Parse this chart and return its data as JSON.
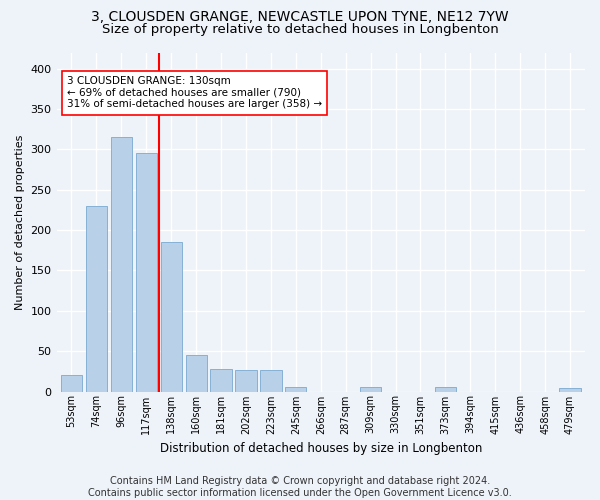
{
  "title_line1": "3, CLOUSDEN GRANGE, NEWCASTLE UPON TYNE, NE12 7YW",
  "title_line2": "Size of property relative to detached houses in Longbenton",
  "xlabel": "Distribution of detached houses by size in Longbenton",
  "ylabel": "Number of detached properties",
  "bar_color": "#b8d0e8",
  "bar_edge_color": "#7aaad0",
  "vline_color": "red",
  "annotation_text": "3 CLOUSDEN GRANGE: 130sqm\n← 69% of detached houses are smaller (790)\n31% of semi-detached houses are larger (358) →",
  "annotation_box_color": "white",
  "annotation_box_edge_color": "red",
  "categories": [
    "53sqm",
    "74sqm",
    "96sqm",
    "117sqm",
    "138sqm",
    "160sqm",
    "181sqm",
    "202sqm",
    "223sqm",
    "245sqm",
    "266sqm",
    "287sqm",
    "309sqm",
    "330sqm",
    "351sqm",
    "373sqm",
    "394sqm",
    "415sqm",
    "436sqm",
    "458sqm",
    "479sqm"
  ],
  "values": [
    20,
    230,
    315,
    295,
    185,
    45,
    28,
    27,
    27,
    5,
    0,
    0,
    5,
    0,
    0,
    5,
    0,
    0,
    0,
    0,
    4
  ],
  "ylim": [
    0,
    420
  ],
  "yticks": [
    0,
    50,
    100,
    150,
    200,
    250,
    300,
    350,
    400
  ],
  "footer": "Contains HM Land Registry data © Crown copyright and database right 2024.\nContains public sector information licensed under the Open Government Licence v3.0.",
  "bg_color": "#eef3fa",
  "plot_bg_color": "#eef3fa",
  "grid_color": "white",
  "title_fontsize": 10,
  "subtitle_fontsize": 9.5,
  "footer_fontsize": 7,
  "ylabel_fontsize": 8,
  "xlabel_fontsize": 8.5,
  "annotation_fontsize": 7.5,
  "tick_fontsize": 7,
  "ytick_fontsize": 8
}
